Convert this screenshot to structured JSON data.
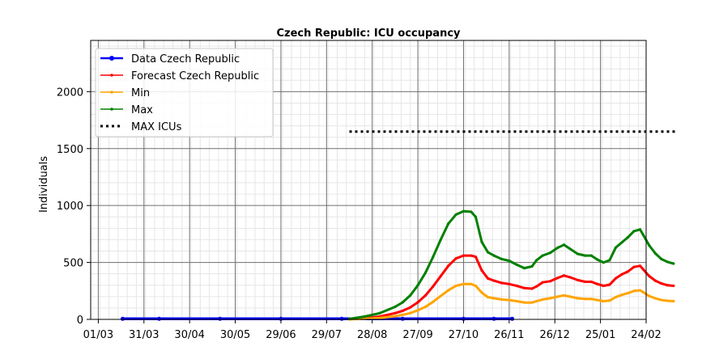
{
  "chart_data": {
    "type": "line",
    "title": "Czech Republic: ICU occupancy",
    "xlabel": "",
    "ylabel": "Individuals",
    "x_ticks": [
      "01/03",
      "31/03",
      "30/04",
      "30/05",
      "29/06",
      "29/07",
      "28/08",
      "27/09",
      "27/10",
      "26/11",
      "26/12",
      "25/01",
      "24/02"
    ],
    "y_ticks": [
      "0",
      "500",
      "1000",
      "1500",
      "2000"
    ],
    "xlim": [
      -5,
      360
    ],
    "ylim": [
      0,
      2450
    ],
    "grid": true,
    "legend_position": "top-left",
    "series": [
      {
        "name": "Data Czech Republic",
        "color": "#0000ff",
        "style": "solid-markers",
        "points": [
          [
            16,
            5
          ],
          [
            40,
            5
          ],
          [
            80,
            5
          ],
          [
            120,
            5
          ],
          [
            160,
            5
          ],
          [
            200,
            5
          ],
          [
            240,
            5
          ],
          [
            260,
            5
          ],
          [
            272,
            5
          ]
        ]
      },
      {
        "name": "Forecast Czech Republic",
        "color": "#ff0000",
        "style": "line-markers",
        "points": [
          [
            165,
            2
          ],
          [
            175,
            10
          ],
          [
            185,
            25
          ],
          [
            195,
            55
          ],
          [
            200,
            75
          ],
          [
            205,
            105
          ],
          [
            210,
            150
          ],
          [
            215,
            210
          ],
          [
            220,
            290
          ],
          [
            225,
            380
          ],
          [
            230,
            470
          ],
          [
            235,
            535
          ],
          [
            240,
            560
          ],
          [
            245,
            560
          ],
          [
            248,
            550
          ],
          [
            252,
            430
          ],
          [
            256,
            360
          ],
          [
            260,
            340
          ],
          [
            265,
            320
          ],
          [
            270,
            310
          ],
          [
            275,
            295
          ],
          [
            280,
            275
          ],
          [
            285,
            270
          ],
          [
            288,
            290
          ],
          [
            292,
            325
          ],
          [
            297,
            335
          ],
          [
            302,
            365
          ],
          [
            306,
            385
          ],
          [
            310,
            370
          ],
          [
            315,
            345
          ],
          [
            320,
            330
          ],
          [
            324,
            330
          ],
          [
            328,
            310
          ],
          [
            332,
            295
          ],
          [
            336,
            305
          ],
          [
            340,
            360
          ],
          [
            344,
            395
          ],
          [
            348,
            420
          ],
          [
            352,
            460
          ],
          [
            356,
            470
          ],
          [
            358,
            440
          ],
          [
            362,
            380
          ],
          [
            366,
            340
          ],
          [
            370,
            315
          ],
          [
            374,
            300
          ],
          [
            378,
            295
          ]
        ]
      },
      {
        "name": "Min",
        "color": "#ffa500",
        "style": "line-markers",
        "points": [
          [
            165,
            1
          ],
          [
            175,
            5
          ],
          [
            185,
            12
          ],
          [
            195,
            28
          ],
          [
            200,
            40
          ],
          [
            205,
            55
          ],
          [
            210,
            80
          ],
          [
            215,
            110
          ],
          [
            220,
            155
          ],
          [
            225,
            205
          ],
          [
            230,
            255
          ],
          [
            235,
            295
          ],
          [
            240,
            310
          ],
          [
            245,
            310
          ],
          [
            248,
            295
          ],
          [
            252,
            235
          ],
          [
            256,
            195
          ],
          [
            260,
            185
          ],
          [
            265,
            175
          ],
          [
            270,
            170
          ],
          [
            275,
            160
          ],
          [
            280,
            148
          ],
          [
            285,
            148
          ],
          [
            288,
            160
          ],
          [
            292,
            175
          ],
          [
            297,
            185
          ],
          [
            302,
            200
          ],
          [
            306,
            210
          ],
          [
            310,
            200
          ],
          [
            315,
            185
          ],
          [
            320,
            180
          ],
          [
            324,
            180
          ],
          [
            328,
            170
          ],
          [
            332,
            160
          ],
          [
            336,
            165
          ],
          [
            340,
            195
          ],
          [
            344,
            215
          ],
          [
            348,
            230
          ],
          [
            352,
            250
          ],
          [
            356,
            255
          ],
          [
            358,
            240
          ],
          [
            362,
            205
          ],
          [
            366,
            185
          ],
          [
            370,
            170
          ],
          [
            374,
            163
          ],
          [
            378,
            160
          ]
        ]
      },
      {
        "name": "Max",
        "color": "#008000",
        "style": "line-markers",
        "points": [
          [
            165,
            5
          ],
          [
            175,
            25
          ],
          [
            185,
            55
          ],
          [
            195,
            110
          ],
          [
            200,
            150
          ],
          [
            205,
            210
          ],
          [
            210,
            300
          ],
          [
            215,
            410
          ],
          [
            220,
            550
          ],
          [
            225,
            700
          ],
          [
            230,
            840
          ],
          [
            235,
            920
          ],
          [
            240,
            950
          ],
          [
            245,
            945
          ],
          [
            248,
            900
          ],
          [
            252,
            680
          ],
          [
            256,
            590
          ],
          [
            260,
            560
          ],
          [
            265,
            530
          ],
          [
            270,
            515
          ],
          [
            275,
            480
          ],
          [
            280,
            450
          ],
          [
            285,
            465
          ],
          [
            288,
            520
          ],
          [
            292,
            560
          ],
          [
            297,
            585
          ],
          [
            302,
            630
          ],
          [
            306,
            655
          ],
          [
            310,
            620
          ],
          [
            315,
            575
          ],
          [
            320,
            560
          ],
          [
            324,
            560
          ],
          [
            328,
            525
          ],
          [
            332,
            500
          ],
          [
            336,
            520
          ],
          [
            340,
            630
          ],
          [
            344,
            675
          ],
          [
            348,
            720
          ],
          [
            352,
            775
          ],
          [
            356,
            790
          ],
          [
            358,
            745
          ],
          [
            362,
            650
          ],
          [
            366,
            580
          ],
          [
            370,
            530
          ],
          [
            374,
            505
          ],
          [
            378,
            490
          ]
        ]
      },
      {
        "name": "MAX ICUs",
        "color": "#000000",
        "style": "dotted",
        "points": [
          [
            165,
            1650
          ],
          [
            380,
            1650
          ]
        ]
      }
    ]
  }
}
